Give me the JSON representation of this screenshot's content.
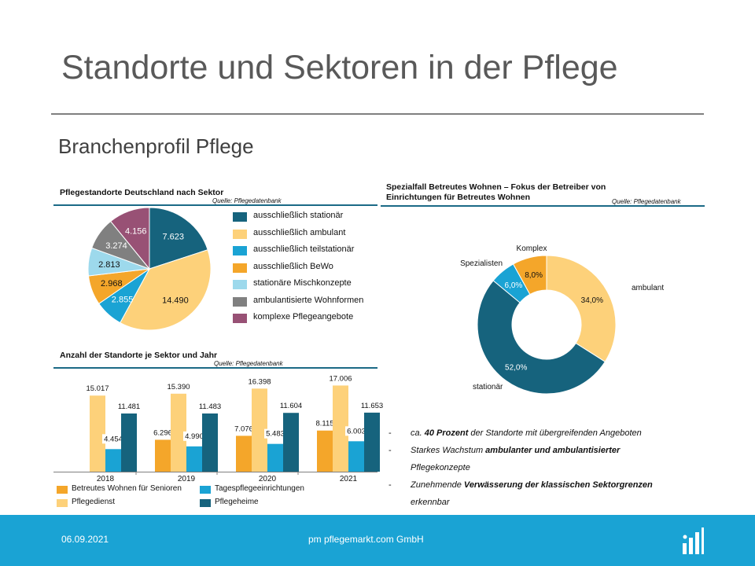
{
  "slide": {
    "title": "Standorte und Sektoren in der Pflege",
    "subtitle": "Branchenprofil Pflege"
  },
  "colors": {
    "stationaer": "#16637d",
    "ambulant": "#fdd17a",
    "teilstationaer": "#1aa3d4",
    "bewo": "#f4a62a",
    "misch": "#9dd9ec",
    "wohnformen": "#808080",
    "komplex": "#985175",
    "rule": "#1b6a86",
    "footer": "#1aa3d4"
  },
  "pie": {
    "title": "Pflegestandorte Deutschland nach Sektor",
    "source": "Quelle: Pflegedatenbank"
  },
  "bars": {
    "title": "Anzahl der Standorte je Sektor und Jahr",
    "source": "Quelle: Pflegedatenbank",
    "legend": [
      {
        "label": "Betreutes Wohnen für Senioren",
        "color": "#f4a62a"
      },
      {
        "label": "Tagespflegeeinrichtungen",
        "color": "#1aa3d4"
      },
      {
        "label": "Pflegedienst",
        "color": "#fdd17a"
      },
      {
        "label": "Pflegeheime",
        "color": "#16637d"
      }
    ]
  },
  "donut": {
    "title_line1": "Spezialfall Betreutes Wohnen – Fokus der Betreiber von",
    "title_line2": "Einrichtungen für Betreutes Wohnen",
    "source": "Quelle: Pflegedatenbank"
  },
  "bullets": {
    "b1_pre": "ca. ",
    "b1_bold": "40 Prozent",
    "b1_post": " der Standorte mit übergreifenden Angeboten",
    "b2_pre": "Starkes Wachstum ",
    "b2_bold": "ambulanter und ambulantisierter",
    "b2_line2": "Pflegekonzepte",
    "b3_pre": "Zunehmende ",
    "b3_bold": "Verwässerung der klassischen Sektorgrenzen",
    "b3_line2": "erkennbar",
    "dash": "-"
  },
  "footer": {
    "date": "06.09.2021",
    "company": "pm pflegemarkt.com GmbH",
    "logo_icon": "pflegemarkt-logo-icon"
  },
  "chart_data": [
    {
      "type": "pie",
      "title": "Pflegestandorte Deutschland nach Sektor",
      "categories": [
        "ausschließlich stationär",
        "ausschließlich ambulant",
        "ausschließlich teilstationär",
        "ausschließlich BeWo",
        "stationäre Mischkonzepte",
        "ambulantisierte Wohnformen",
        "komplexe Pflegeangebote"
      ],
      "values": [
        7623,
        14490,
        2855,
        2968,
        2813,
        3274,
        4156
      ],
      "labels": [
        "7.623",
        "14.490",
        "2.855",
        "2.968",
        "2.813",
        "3.274",
        "4.156"
      ],
      "colors": [
        "#16637d",
        "#fdd17a",
        "#1aa3d4",
        "#f4a62a",
        "#9dd9ec",
        "#808080",
        "#985175"
      ],
      "legend_position": "right"
    },
    {
      "type": "bar",
      "title": "Anzahl der Standorte je Sektor und Jahr",
      "categories": [
        "2018",
        "2019",
        "2020",
        "2021"
      ],
      "series": [
        {
          "name": "Betreutes Wohnen für Senioren",
          "color": "#f4a62a",
          "values": [
            null,
            6296,
            7076,
            8115
          ],
          "labels": [
            "",
            "6.296",
            "7.076",
            "8.115"
          ]
        },
        {
          "name": "Pflegedienst",
          "color": "#fdd17a",
          "values": [
            15017,
            15390,
            16398,
            17006
          ],
          "labels": [
            "15.017",
            "15.390",
            "16.398",
            "17.006"
          ]
        },
        {
          "name": "Tagespflegeeinrichtungen",
          "color": "#1aa3d4",
          "values": [
            4454,
            4990,
            5483,
            6003
          ],
          "labels": [
            "4.454",
            "4.990",
            "5.483",
            "6.003"
          ]
        },
        {
          "name": "Pflegeheime",
          "color": "#16637d",
          "values": [
            11481,
            11483,
            11604,
            11653
          ],
          "labels": [
            "11.481",
            "11.483",
            "11.604",
            "11.653"
          ]
        }
      ],
      "ylim": [
        0,
        18000
      ],
      "legend_position": "bottom"
    },
    {
      "type": "pie",
      "subtype": "donut",
      "title": "Spezialfall Betreutes Wohnen – Fokus der Betreiber von Einrichtungen für Betreutes Wohnen",
      "categories": [
        "ambulant",
        "stationär",
        "Spezialisten",
        "Komplex"
      ],
      "values": [
        34.0,
        52.0,
        6.0,
        8.0
      ],
      "labels": [
        "34,0%",
        "52,0%",
        "6,0%",
        "8,0%"
      ],
      "colors": [
        "#fdd17a",
        "#16637d",
        "#1aa3d4",
        "#f4a62a"
      ]
    }
  ]
}
